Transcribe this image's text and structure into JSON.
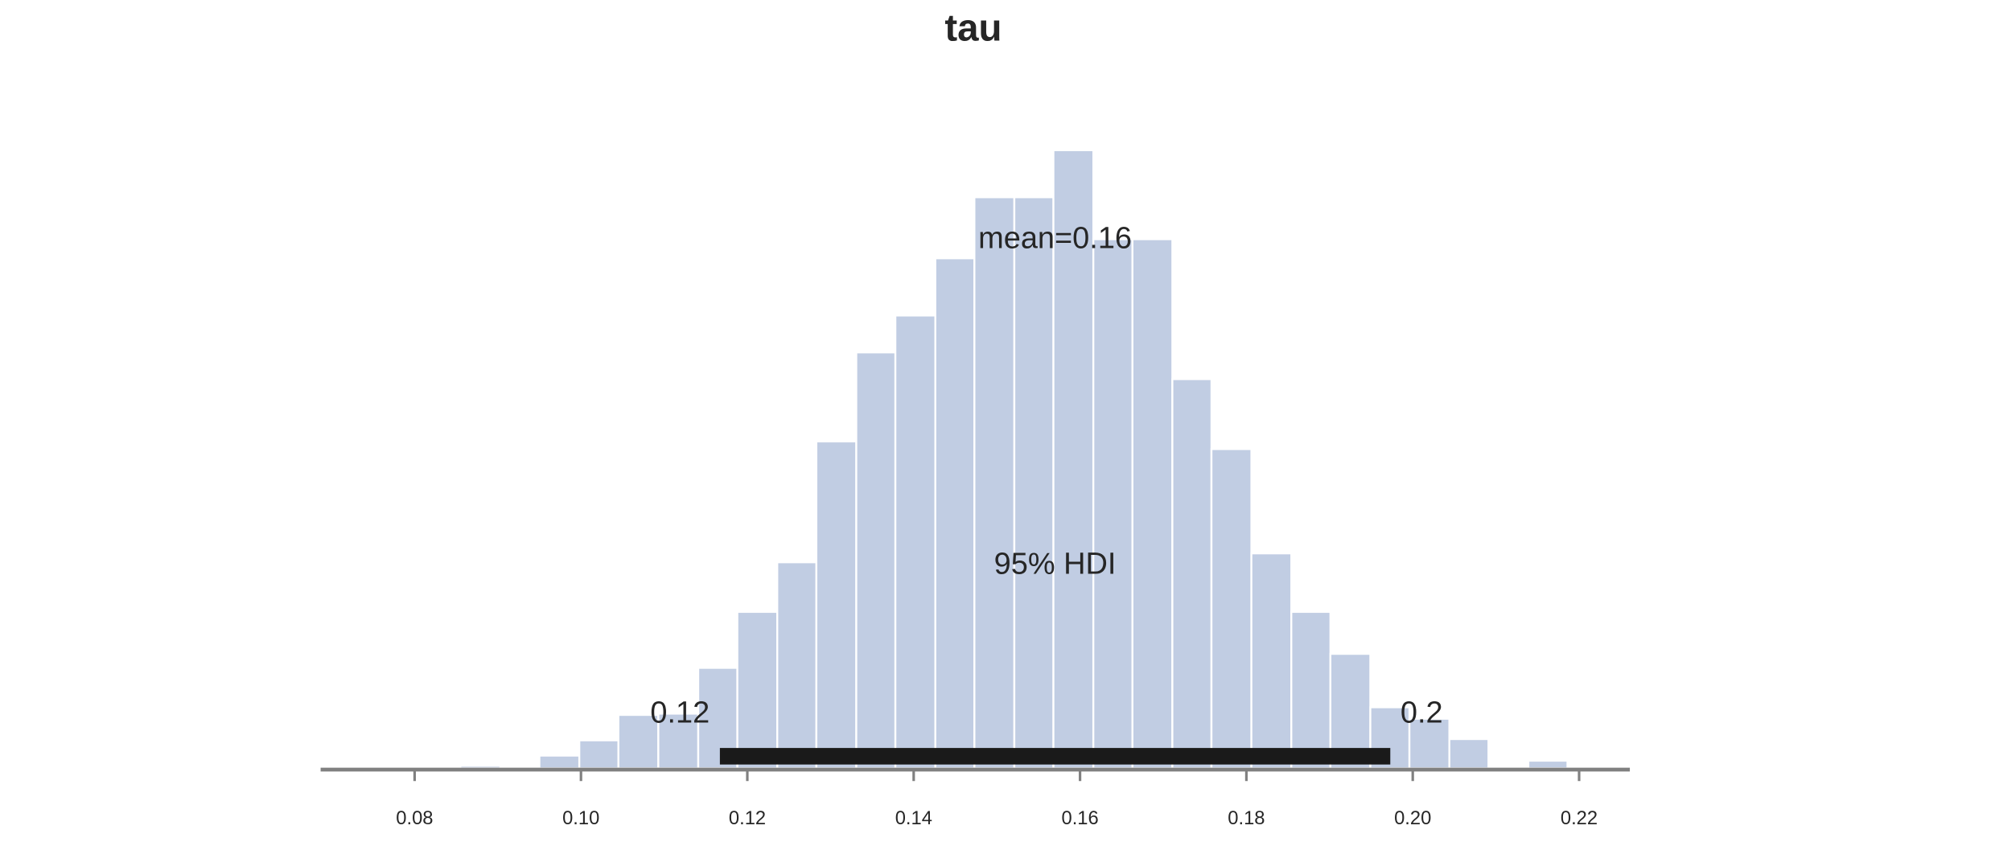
{
  "chart_data": {
    "type": "histogram",
    "title": "tau",
    "bins": [
      0.0855,
      0.0903,
      0.095,
      0.0998,
      0.1045,
      0.1093,
      0.1141,
      0.1188,
      0.1236,
      0.1283,
      0.1331,
      0.1378,
      0.1426,
      0.1473,
      0.1521,
      0.1568,
      0.1616,
      0.1663,
      0.1711,
      0.1758,
      0.1806,
      0.1854,
      0.1901,
      0.1949,
      0.1996,
      0.2044,
      0.2091,
      0.2139,
      0.2186
    ],
    "values": [
      2,
      0,
      10,
      22,
      42,
      43,
      79,
      123,
      162,
      257,
      327,
      356,
      401,
      449,
      449,
      486,
      416,
      416,
      306,
      251,
      169,
      123,
      90,
      48,
      39,
      23,
      0,
      6
    ],
    "color": "#c1cde3",
    "xlim": [
      0.0687,
      0.2261
    ],
    "ylim": [
      0,
      500
    ],
    "xticks": [
      0.08,
      {
        "value": 0.1,
        "label": "0.10"
      },
      0.12,
      0.14,
      0.16,
      0.18,
      {
        "value": 0.2,
        "label": "0.20"
      },
      0.22
    ],
    "mean": {
      "value": 0.157,
      "label": "mean=0.16"
    },
    "hdi": {
      "label": "95% HDI",
      "values": [
        0.1167,
        0.1973
      ],
      "value_labels": [
        "0.12",
        "0.2"
      ],
      "color": "#1a1a1a"
    }
  }
}
